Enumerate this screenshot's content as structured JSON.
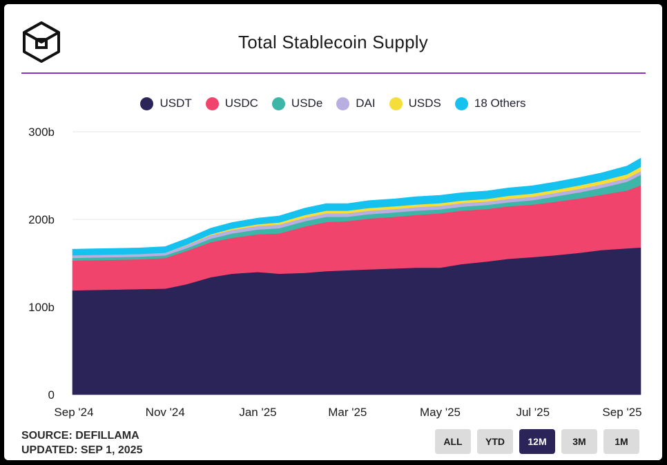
{
  "header": {
    "title": "Total Stablecoin Supply"
  },
  "footer": {
    "source": "SOURCE: DEFILLAMA",
    "updated": "UPDATED: SEP 1, 2025"
  },
  "range_buttons": [
    {
      "label": "ALL",
      "active": false
    },
    {
      "label": "YTD",
      "active": false
    },
    {
      "label": "12M",
      "active": true
    },
    {
      "label": "3M",
      "active": false
    },
    {
      "label": "1M",
      "active": false
    }
  ],
  "chart_data": {
    "type": "area",
    "stacked": true,
    "title": "Total Stablecoin Supply",
    "legend_position": "top",
    "grid": true,
    "y_unit_suffix": "b",
    "ylim": [
      0,
      300
    ],
    "y_ticks": [
      {
        "value": 0,
        "label": "0"
      },
      {
        "value": 100,
        "label": "100b"
      },
      {
        "value": 200,
        "label": "200b"
      },
      {
        "value": 300,
        "label": "300b"
      }
    ],
    "x_ticks": [
      "Sep '24",
      "Nov '24",
      "Jan '25",
      "Mar '25",
      "May '25",
      "Jul '25",
      "Sep '25"
    ],
    "x": [
      "2024-09-01",
      "2024-09-15",
      "2024-10-01",
      "2024-10-15",
      "2024-11-01",
      "2024-11-15",
      "2024-12-01",
      "2024-12-15",
      "2025-01-01",
      "2025-01-15",
      "2025-02-01",
      "2025-02-15",
      "2025-03-01",
      "2025-03-15",
      "2025-04-01",
      "2025-04-15",
      "2025-05-01",
      "2025-05-15",
      "2025-06-01",
      "2025-06-15",
      "2025-07-01",
      "2025-07-15",
      "2025-08-01",
      "2025-08-15",
      "2025-09-01",
      "2025-09-10"
    ],
    "series": [
      {
        "name": "USDT",
        "color": "#2a2459",
        "values": [
          119,
          119.5,
          120,
          120.5,
          121,
          126,
          134,
          138,
          140,
          138,
          139,
          141,
          142,
          143,
          144,
          145,
          145,
          149,
          152,
          155,
          157,
          159,
          162,
          165,
          167,
          168
        ]
      },
      {
        "name": "USDC",
        "color": "#f0446c",
        "values": [
          34,
          34,
          34,
          34,
          35,
          38,
          40,
          41,
          43,
          46,
          53,
          56,
          56,
          58,
          59,
          60,
          62,
          61,
          60,
          60,
          60,
          61,
          62,
          63,
          66,
          71
        ]
      },
      {
        "name": "USDe",
        "color": "#3db6a8",
        "values": [
          3,
          3,
          3,
          3,
          3,
          3,
          4,
          5,
          5.5,
          6,
          6,
          6,
          5,
          5,
          5,
          5,
          4.5,
          4.5,
          4.5,
          4.5,
          5,
          6,
          7,
          8,
          10,
          12
        ]
      },
      {
        "name": "DAI",
        "color": "#b9aee2",
        "values": [
          3,
          3,
          3,
          3,
          3,
          3.5,
          4,
          4,
          4,
          4,
          4,
          4,
          4,
          4,
          4,
          4,
          4,
          4,
          4,
          4,
          4,
          4,
          4,
          4,
          4,
          4
        ]
      },
      {
        "name": "USDS",
        "color": "#f5de3a",
        "values": [
          0,
          0,
          0,
          0,
          0,
          0.5,
          1,
          1.5,
          2,
          2.5,
          3,
          3,
          3,
          3,
          3,
          3,
          3,
          3,
          3,
          3.5,
          3.5,
          3.5,
          4,
          4,
          4.5,
          5
        ]
      },
      {
        "name": "18 Others",
        "color": "#14c1ef",
        "values": [
          7,
          7,
          7,
          7,
          7,
          7,
          7,
          7,
          7,
          7.5,
          8,
          8,
          8,
          8.5,
          8.5,
          9,
          9,
          9,
          9,
          9,
          9,
          9,
          9,
          9,
          9.5,
          10
        ]
      }
    ]
  }
}
